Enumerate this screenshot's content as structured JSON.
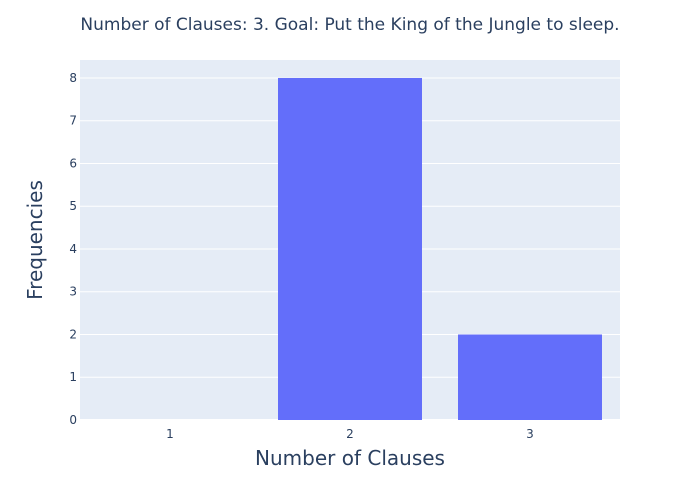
{
  "chart_data": {
    "type": "bar",
    "title": "Number of Clauses: 3. Goal: Put the King of the Jungle to sleep.",
    "xlabel": "Number of Clauses",
    "ylabel": "Frequencies",
    "categories": [
      "1",
      "2",
      "3"
    ],
    "values": [
      0,
      8,
      2
    ],
    "ylim": [
      0,
      8.42
    ],
    "yticks": [
      "0",
      "1",
      "2",
      "3",
      "4",
      "5",
      "6",
      "7",
      "8"
    ],
    "grid": true,
    "bar_color": "#636efa",
    "plot_background": "#e5ecf6"
  }
}
